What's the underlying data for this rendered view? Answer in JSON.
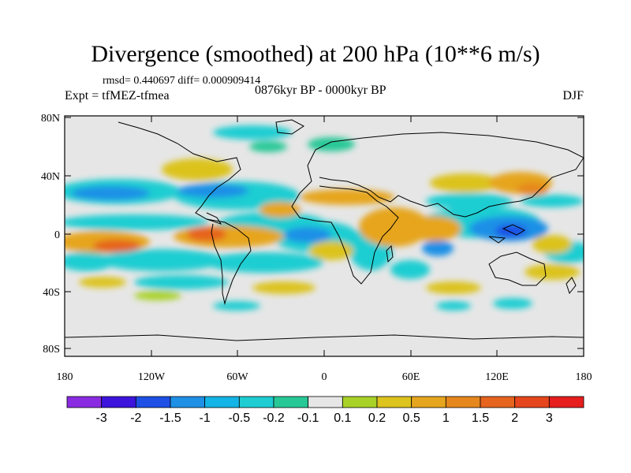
{
  "title": "Divergence (smoothed) at 200 hPa (10**6 m/s)",
  "stats": "rmsd= 0.440697 diff= 0.000909414",
  "experiment": "Expt = tfMEZ-tfmea",
  "period": "0876kyr BP - 0000kyr BP",
  "season": "DJF",
  "axes": {
    "lat_ticks": [
      "80N",
      "40N",
      "0",
      "40S",
      "80S"
    ],
    "lon_ticks": [
      "180",
      "120W",
      "60W",
      "0",
      "60E",
      "120E",
      "180"
    ]
  },
  "colorbar": {
    "colors": [
      "#8a2be2",
      "#3c14dc",
      "#1e50e6",
      "#1e90e6",
      "#14b4e6",
      "#1ecdd2",
      "#28c896",
      "#e6e6e6",
      "#a8d228",
      "#dcc31e",
      "#e6a51e",
      "#e6871e",
      "#e6641e",
      "#e6461e",
      "#e61e1e"
    ],
    "labels": [
      "-3",
      "-2",
      "-1.5",
      "-1",
      "-0.5",
      "-0.2",
      "-0.1",
      "0.1",
      "0.2",
      "0.5",
      "1",
      "1.5",
      "2",
      "3"
    ]
  },
  "colors": {
    "land_background": "#e6e6e6",
    "coast": "#000000"
  }
}
